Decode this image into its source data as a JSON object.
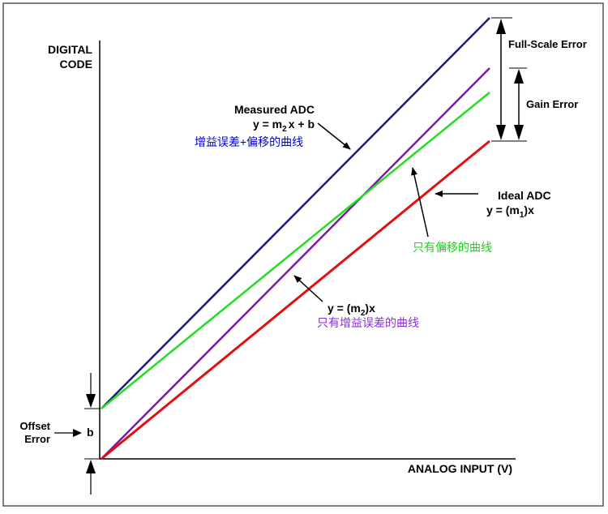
{
  "axes": {
    "y_label_line1": "DIGITAL",
    "y_label_line2": "CODE",
    "x_label": "ANALOG INPUT (V)"
  },
  "annotations": {
    "full_scale_error": "Full-Scale Error",
    "gain_error": "Gain Error",
    "offset_error_line1": "Offset",
    "offset_error_line2": "Error",
    "offset_symbol": "b",
    "measured_title": "Measured ADC",
    "measured_eq_a": "y = m",
    "measured_eq_sub": "2",
    "measured_eq_b": "x + b",
    "measured_cn": "增益误差+偏移的曲线",
    "ideal_title": "Ideal ADC",
    "ideal_eq_a": "y = (m",
    "ideal_eq_sub": "1",
    "ideal_eq_b": ")x",
    "offset_only_cn": "只有偏移的曲线",
    "gain_eq_a": "y = (m",
    "gain_eq_sub": "2",
    "gain_eq_b": ")x",
    "gain_only_cn": "只有增益误差的曲线"
  },
  "colors": {
    "measured": "#1a1a7a",
    "gain_only": "#7a1aa8",
    "offset_only": "#22dd22",
    "ideal": "#e01010",
    "measured_text": "#0000cc",
    "offset_text": "#22cc22",
    "gain_text": "#8a2be2"
  }
}
